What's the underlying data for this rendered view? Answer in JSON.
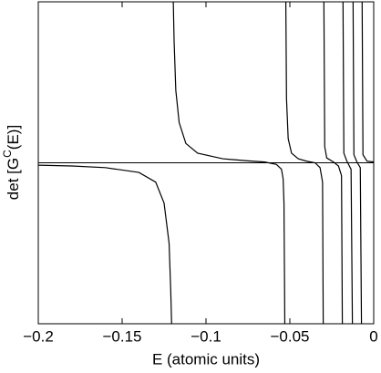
{
  "chart_data": {
    "type": "line",
    "xlabel": "E (atomic units)",
    "ylabel": [
      "det [G",
      "C",
      "(E)]"
    ],
    "xlim": [
      -0.2,
      0
    ],
    "ylim": [
      -1,
      1
    ],
    "xticks": [
      {
        "value": -0.2,
        "label": "−0.2"
      },
      {
        "value": -0.15,
        "label": "−0.15"
      },
      {
        "value": -0.1,
        "label": "−0.1"
      },
      {
        "value": -0.05,
        "label": "−0.05"
      },
      0
    ],
    "x": [
      -0.2,
      -0.18,
      -0.16,
      -0.14,
      -0.13,
      -0.125,
      -0.122,
      -0.121,
      -0.1205,
      -0.12,
      -0.1195,
      -0.119,
      -0.118,
      -0.116,
      -0.112,
      -0.105,
      -0.09,
      -0.075,
      -0.065,
      -0.058,
      -0.055,
      -0.054,
      -0.0535,
      -0.053,
      -0.0527,
      -0.0524,
      -0.052,
      -0.051,
      -0.049,
      -0.045,
      -0.04,
      -0.035,
      -0.032,
      -0.0305,
      -0.0301,
      -0.0299,
      -0.0297,
      -0.0292,
      -0.028,
      -0.024,
      -0.021,
      -0.0192,
      -0.0187,
      -0.0185,
      -0.0183,
      -0.0178,
      -0.016,
      -0.0135,
      -0.0127,
      -0.0125,
      -0.0123,
      -0.0118,
      -0.01,
      -0.008,
      -0.0073,
      -0.0071,
      -0.0069,
      -0.0064,
      -0.004,
      0
    ],
    "series": [
      {
        "color": "#000000",
        "values": [
          -0.015,
          -0.02,
          -0.03,
          -0.06,
          -0.12,
          -0.25,
          -0.5,
          -0.8,
          -1,
          null,
          1,
          0.75,
          0.45,
          0.25,
          0.12,
          0.06,
          0.025,
          0.012,
          0.005,
          -0.01,
          -0.04,
          -0.1,
          -0.25,
          -1,
          null,
          1,
          0.4,
          0.15,
          0.06,
          0.025,
          0.01,
          0,
          -0.03,
          -0.12,
          -1,
          null,
          1,
          0.1,
          0.03,
          0.005,
          -0.02,
          -0.08,
          -1,
          null,
          1,
          0.06,
          0.01,
          -0.04,
          -1,
          null,
          1,
          0.05,
          0.005,
          -0.03,
          -1,
          null,
          1,
          0.05,
          0.01,
          0.005
        ]
      }
    ]
  }
}
